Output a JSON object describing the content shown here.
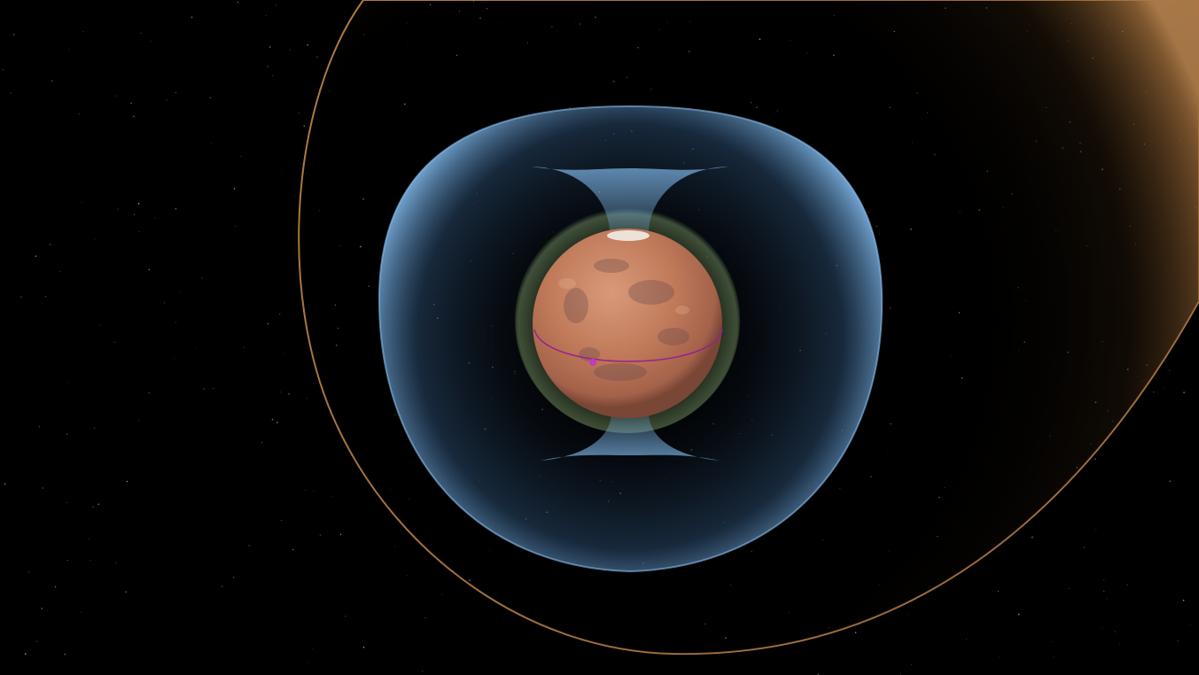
{
  "scene": {
    "subject": "Mars",
    "colors": {
      "background": "#000000",
      "bow_shock": "#c98a4a",
      "magnetosphere": "#6fa8d8",
      "ionosphere": "#7a9a6a",
      "planet": "#b86d4f",
      "orbit": "#9b1f8f",
      "spacecraft": "#c23bc0"
    }
  }
}
